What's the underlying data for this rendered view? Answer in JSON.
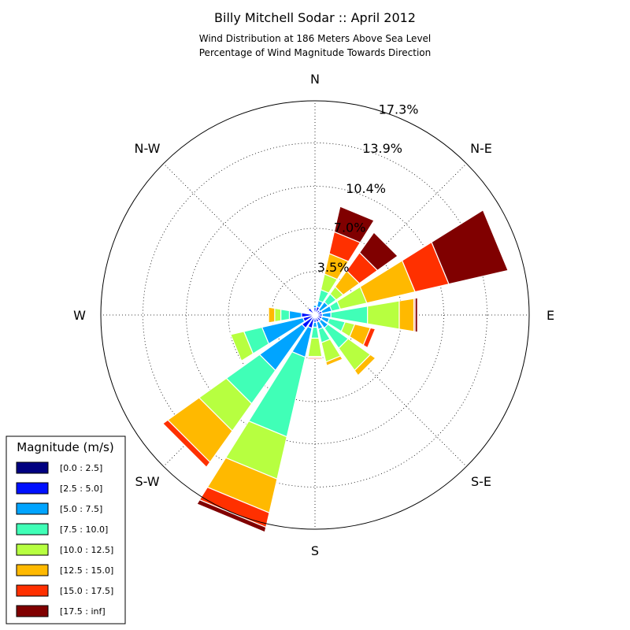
{
  "chart_data": {
    "type": "windrose",
    "title": "Billy Mitchell Sodar :: April 2012",
    "subtitle_line1": "Wind Distribution at 186 Meters Above Sea Level",
    "subtitle_line2": "Percentage of Wind Magnitude Towards Direction",
    "direction_labels": {
      "north": "N",
      "north_east": "N-E",
      "east": "E",
      "south_east": "S-E",
      "south": "S",
      "south_west": "S-W",
      "west": "W",
      "north_west": "N-W"
    },
    "radial_ticks": [
      "3.5%",
      "7.0%",
      "10.4%",
      "13.9%",
      "17.3%"
    ],
    "radial_max": 17.3,
    "grid": true,
    "legend": {
      "title": "Magnitude (m/s)",
      "placement": "bottom-left"
    },
    "bins": [
      {
        "label": "[0.0 : 2.5]",
        "color": "#000080"
      },
      {
        "label": "[2.5 : 5.0]",
        "color": "#0010ff"
      },
      {
        "label": "[5.0 : 7.5]",
        "color": "#00a4ff"
      },
      {
        "label": "[7.5 : 10.0]",
        "color": "#40ffb7"
      },
      {
        "label": "[10.0 : 12.5]",
        "color": "#b7ff40"
      },
      {
        "label": "[12.5 : 15.0]",
        "color": "#ffb900"
      },
      {
        "label": "[15.0 : 17.5]",
        "color": "#ff3000"
      },
      {
        "label": "[17.5 : inf]",
        "color": "#800000"
      }
    ],
    "sectors": [
      {
        "direction_deg": 0.0,
        "cumulative": [
          0.2,
          0.6,
          0.8,
          0.8,
          0.8,
          0.8,
          0.8,
          0.8
        ]
      },
      {
        "direction_deg": 22.5,
        "cumulative": [
          0.2,
          0.7,
          1.2,
          2.1,
          3.4,
          5.1,
          6.9,
          9.0
        ]
      },
      {
        "direction_deg": 45.0,
        "cumulative": [
          0.2,
          0.5,
          1.3,
          2.1,
          2.8,
          4.4,
          6.2,
          8.2
        ]
      },
      {
        "direction_deg": 67.5,
        "cumulative": [
          0.2,
          0.6,
          1.4,
          2.1,
          4.3,
          8.3,
          11.1,
          16.0
        ]
      },
      {
        "direction_deg": 90.0,
        "cumulative": [
          0.2,
          0.6,
          1.3,
          4.3,
          6.9,
          8.1,
          8.2,
          8.4
        ]
      },
      {
        "direction_deg": 112.5,
        "cumulative": [
          0.2,
          0.6,
          1.2,
          2.5,
          3.3,
          4.6,
          5.0,
          5.0
        ]
      },
      {
        "direction_deg": 135.0,
        "cumulative": [
          0.2,
          0.6,
          1.3,
          3.3,
          5.5,
          6.0,
          6.0,
          6.0
        ]
      },
      {
        "direction_deg": 157.5,
        "cumulative": [
          0.2,
          0.6,
          1.2,
          2.3,
          3.9,
          4.2,
          4.2,
          4.2
        ]
      },
      {
        "direction_deg": 180.0,
        "cumulative": [
          0.2,
          0.6,
          1.0,
          1.9,
          3.4,
          3.5,
          3.6,
          3.6
        ]
      },
      {
        "direction_deg": 202.5,
        "cumulative": [
          0.2,
          1.1,
          3.5,
          10.1,
          13.6,
          16.4,
          17.6,
          18.0
        ]
      },
      {
        "direction_deg": 225.0,
        "cumulative": [
          0.2,
          1.3,
          5.5,
          8.8,
          11.5,
          14.6,
          15.1,
          15.1
        ]
      },
      {
        "direction_deg": 247.5,
        "cumulative": [
          0.2,
          1.0,
          4.4,
          5.9,
          7.0,
          7.0,
          7.0,
          7.0
        ]
      },
      {
        "direction_deg": 270.0,
        "cumulative": [
          0.2,
          1.1,
          2.1,
          2.8,
          3.3,
          3.8,
          3.8,
          3.8
        ]
      },
      {
        "direction_deg": 292.5,
        "cumulative": [
          0.2,
          0.2,
          0.2,
          0.2,
          0.2,
          0.2,
          0.2,
          0.2
        ]
      },
      {
        "direction_deg": 315.0,
        "cumulative": [
          0.2,
          0.7,
          0.7,
          0.7,
          0.7,
          0.7,
          0.7,
          0.7
        ]
      },
      {
        "direction_deg": 337.5,
        "cumulative": [
          0.2,
          0.2,
          0.2,
          0.2,
          0.2,
          0.2,
          0.2,
          0.2
        ]
      }
    ]
  }
}
